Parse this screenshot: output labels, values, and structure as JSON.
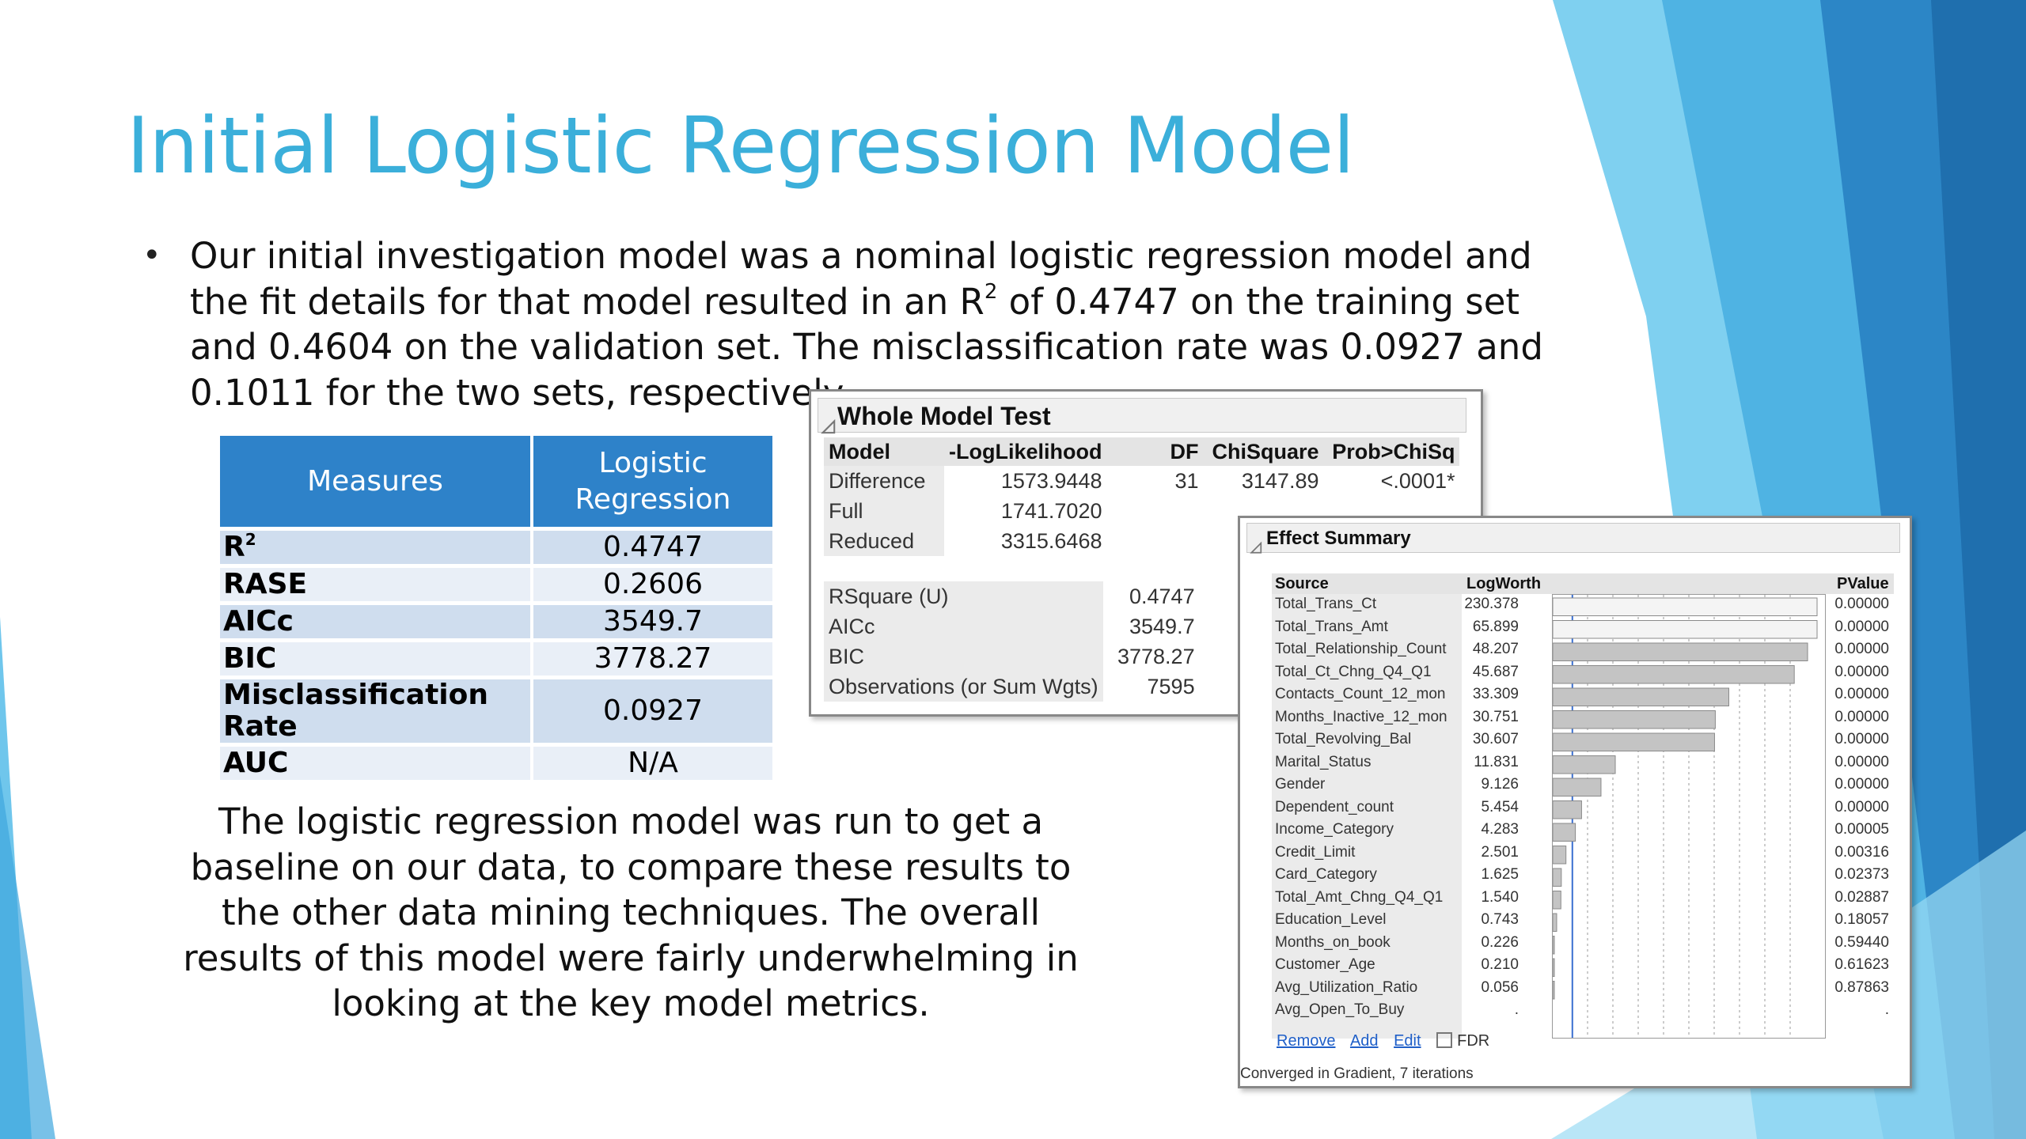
{
  "slide": {
    "title": "Initial Logistic Regression Model",
    "bullet": {
      "before_sup": "Our initial investigation model was a nominal logistic regression model and the fit details for that model resulted in an R",
      "sup": "2",
      "after_sup": " of 0.4747 on the training set and 0.4604 on the validation set. The misclassification rate was 0.0927 and 0.1011 for the two sets, respectively."
    },
    "paragraph": "The logistic regression model was run to get a baseline on our data, to compare these results to the other data mining techniques. The overall results of this model were fairly underwhelming in looking at the key model metrics."
  },
  "measures_table": {
    "headers": [
      "Measures",
      "Logistic Regression"
    ],
    "rows": [
      {
        "measure": "R",
        "sup": "2",
        "value": "0.4747"
      },
      {
        "measure": "RASE",
        "sup": "",
        "value": "0.2606"
      },
      {
        "measure": "AICc",
        "sup": "",
        "value": "3549.7"
      },
      {
        "measure": "BIC",
        "sup": "",
        "value": "3778.27"
      },
      {
        "measure": "Misclassification Rate",
        "sup": "",
        "value": "0.0927"
      },
      {
        "measure": "AUC",
        "sup": "",
        "value": "N/A"
      }
    ]
  },
  "whole_model_test": {
    "title": "Whole Model Test",
    "columns": [
      "Model",
      "-LogLikelihood",
      "DF",
      "ChiSquare",
      "Prob>ChiSq"
    ],
    "rows": [
      {
        "model": "Difference",
        "loglik": "1573.9448",
        "df": "31",
        "chisq": "3147.89",
        "prob": "<.0001*"
      },
      {
        "model": "Full",
        "loglik": "1741.7020",
        "df": "",
        "chisq": "",
        "prob": ""
      },
      {
        "model": "Reduced",
        "loglik": "3315.6468",
        "df": "",
        "chisq": "",
        "prob": ""
      }
    ],
    "fit_stats": [
      {
        "label": "RSquare (U)",
        "value": "0.4747"
      },
      {
        "label": "AICc",
        "value": "3549.7"
      },
      {
        "label": "BIC",
        "value": "3778.27"
      },
      {
        "label": "Observations (or Sum Wgts)",
        "value": "7595"
      }
    ]
  },
  "effect_summary": {
    "title": "Effect Summary",
    "columns": {
      "source": "Source",
      "logworth": "LogWorth",
      "pvalue": "PValue"
    },
    "bar_axis_max": 50,
    "rows": [
      {
        "source": "Total_Trans_Ct",
        "logworth": "230.378",
        "pvalue": "0.00000",
        "lw": 230.378
      },
      {
        "source": "Total_Trans_Amt",
        "logworth": "65.899",
        "pvalue": "0.00000",
        "lw": 65.899
      },
      {
        "source": "Total_Relationship_Count",
        "logworth": "48.207",
        "pvalue": "0.00000",
        "lw": 48.207
      },
      {
        "source": "Total_Ct_Chng_Q4_Q1",
        "logworth": "45.687",
        "pvalue": "0.00000",
        "lw": 45.687
      },
      {
        "source": "Contacts_Count_12_mon",
        "logworth": "33.309",
        "pvalue": "0.00000",
        "lw": 33.309
      },
      {
        "source": "Months_Inactive_12_mon",
        "logworth": "30.751",
        "pvalue": "0.00000",
        "lw": 30.751
      },
      {
        "source": "Total_Revolving_Bal",
        "logworth": "30.607",
        "pvalue": "0.00000",
        "lw": 30.607
      },
      {
        "source": "Marital_Status",
        "logworth": "11.831",
        "pvalue": "0.00000",
        "lw": 11.831
      },
      {
        "source": "Gender",
        "logworth": "9.126",
        "pvalue": "0.00000",
        "lw": 9.126
      },
      {
        "source": "Dependent_count",
        "logworth": "5.454",
        "pvalue": "0.00000",
        "lw": 5.454
      },
      {
        "source": "Income_Category",
        "logworth": "4.283",
        "pvalue": "0.00005",
        "lw": 4.283
      },
      {
        "source": "Credit_Limit",
        "logworth": "2.501",
        "pvalue": "0.00316",
        "lw": 2.501
      },
      {
        "source": "Card_Category",
        "logworth": "1.625",
        "pvalue": "0.02373",
        "lw": 1.625
      },
      {
        "source": "Total_Amt_Chng_Q4_Q1",
        "logworth": "1.540",
        "pvalue": "0.02887",
        "lw": 1.54
      },
      {
        "source": "Education_Level",
        "logworth": "0.743",
        "pvalue": "0.18057",
        "lw": 0.743
      },
      {
        "source": "Months_on_book",
        "logworth": "0.226",
        "pvalue": "0.59440",
        "lw": 0.226
      },
      {
        "source": "Customer_Age",
        "logworth": "0.210",
        "pvalue": "0.61623",
        "lw": 0.21
      },
      {
        "source": "Avg_Utilization_Ratio",
        "logworth": "0.056",
        "pvalue": "0.87863",
        "lw": 0.056
      },
      {
        "source": "Avg_Open_To_Buy",
        "logworth": ".",
        "pvalue": ".",
        "lw": 0
      }
    ],
    "links": {
      "remove": "Remove",
      "add": "Add",
      "edit": "Edit",
      "fdr": "FDR"
    },
    "footer": "Converged in Gradient, 7 iterations"
  },
  "colors": {
    "title": "#3BAFDA",
    "table_header": "#2E82C9",
    "orange_flag": "#E88A1C"
  }
}
